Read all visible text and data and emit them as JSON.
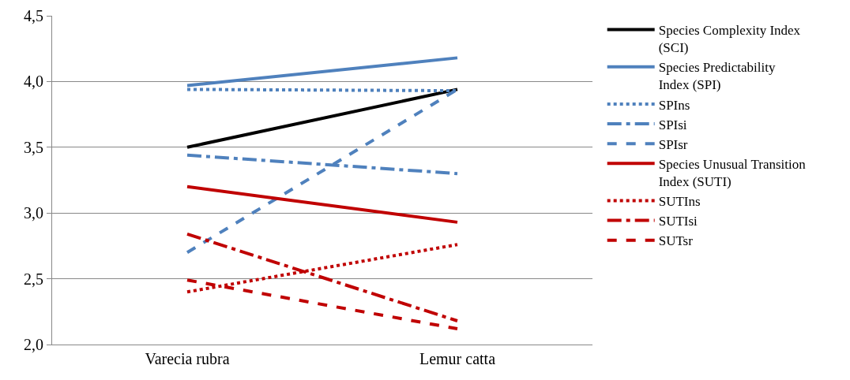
{
  "chart_data": {
    "type": "line",
    "categories": [
      "Varecia rubra",
      "Lemur catta"
    ],
    "ylim": [
      2.0,
      4.5
    ],
    "yticks": [
      {
        "value": 2,
        "label": "2,0"
      },
      {
        "value": 2.5,
        "label": "2,5"
      },
      {
        "value": 3,
        "label": "3,0"
      },
      {
        "value": 3.5,
        "label": "3,5"
      },
      {
        "value": 4,
        "label": "4,0"
      },
      {
        "value": 4.5,
        "label": "4,5"
      }
    ],
    "grid": "y",
    "legend": "right",
    "marker": "none",
    "series": [
      {
        "name": "Species Complexity Index (SCI)",
        "color": "#000000",
        "line_style": "solid",
        "values": [
          3.5,
          3.94
        ]
      },
      {
        "name": "Species Predictability Index (SPI)",
        "color": "#4f81bd",
        "line_style": "solid",
        "values": [
          3.97,
          4.18
        ]
      },
      {
        "name": "SPIns",
        "color": "#4f81bd",
        "line_style": "dotted",
        "values": [
          3.94,
          3.93
        ]
      },
      {
        "name": "SPIsi",
        "color": "#4f81bd",
        "line_style": "dashdot",
        "values": [
          3.44,
          3.3
        ]
      },
      {
        "name": "SPIsr",
        "color": "#4f81bd",
        "line_style": "dashed",
        "values": [
          2.7,
          3.94
        ]
      },
      {
        "name": "Species Unusual Transition Index (SUTI)",
        "color": "#c00000",
        "line_style": "solid",
        "values": [
          3.2,
          2.93
        ]
      },
      {
        "name": "SUTIns",
        "color": "#c00000",
        "line_style": "dotted",
        "values": [
          2.4,
          2.76
        ]
      },
      {
        "name": "SUTIsi",
        "color": "#c00000",
        "line_style": "dashdot",
        "values": [
          2.84,
          2.18
        ]
      },
      {
        "name": "SUTsr",
        "color": "#c00000",
        "line_style": "dashed",
        "values": [
          2.49,
          2.12
        ]
      }
    ]
  }
}
